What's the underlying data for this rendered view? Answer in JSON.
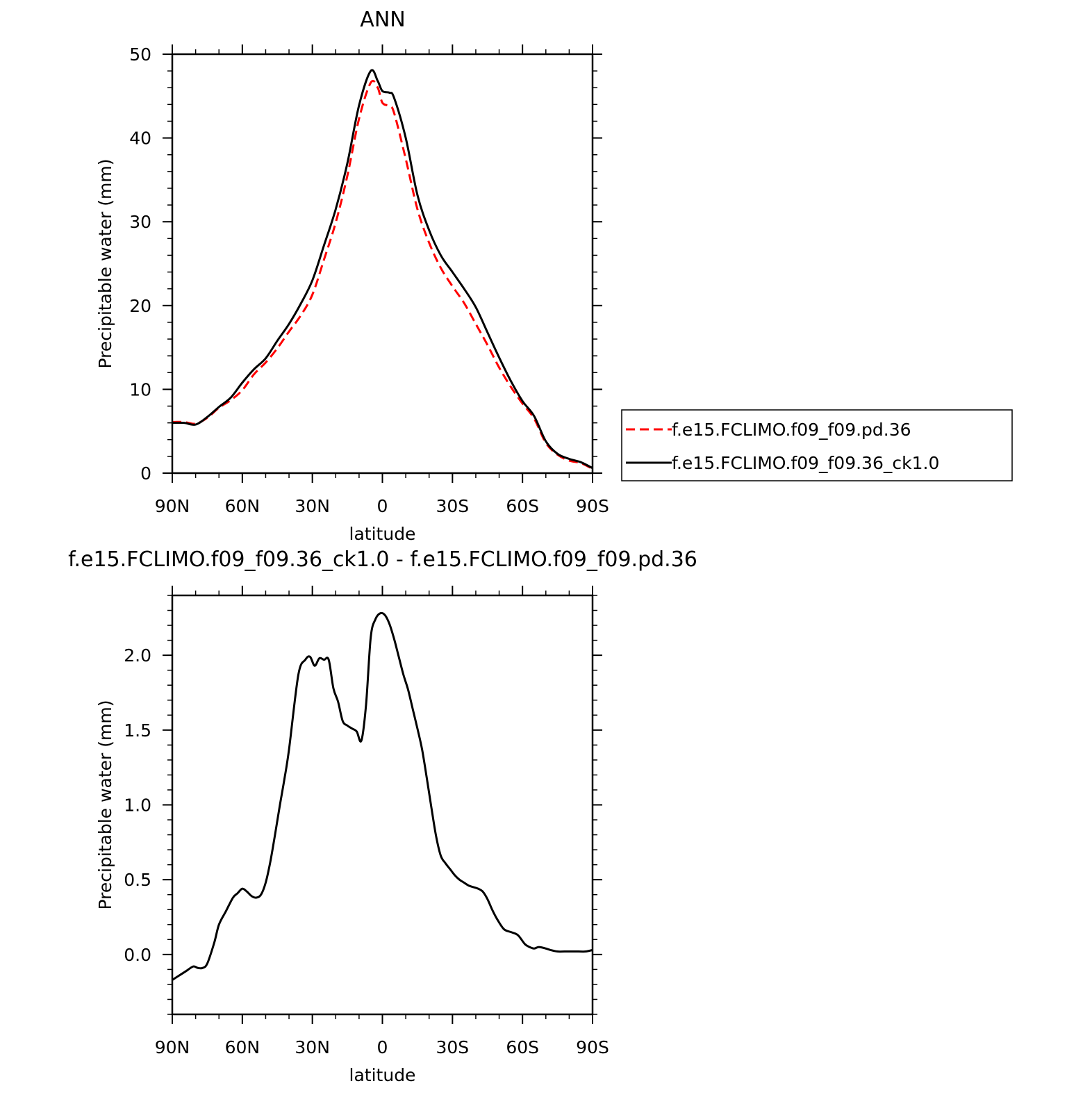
{
  "chart_data": [
    {
      "type": "line",
      "title": "ANN",
      "xlabel": "latitude",
      "ylabel": "Precipitable water (mm)",
      "xlim": [
        90,
        -90
      ],
      "ylim": [
        0,
        50
      ],
      "x_ticks": [
        90,
        60,
        30,
        0,
        -30,
        -60,
        -90
      ],
      "x_tick_labels": [
        "90N",
        "60N",
        "30N",
        "0",
        "30S",
        "60S",
        "90S"
      ],
      "y_ticks": [
        0,
        10,
        20,
        30,
        40,
        50
      ],
      "y_tick_labels": [
        "0",
        "10",
        "20",
        "30",
        "40",
        "50"
      ],
      "legend_position": "right",
      "series": [
        {
          "name": "f.e15.FCLIMO.f09_f09.pd.36",
          "color": "#ff0000",
          "style": "dashed",
          "x": [
            90,
            85,
            80,
            75,
            70,
            65,
            60,
            55,
            50,
            45,
            40,
            35,
            30,
            25,
            20,
            15,
            10,
            5,
            2,
            0,
            -3,
            -5,
            -10,
            -15,
            -20,
            -25,
            -30,
            -35,
            -40,
            -45,
            -50,
            -55,
            -60,
            -65,
            -70,
            -75,
            -80,
            -85,
            -90
          ],
          "y": [
            6.1,
            6.1,
            5.9,
            6.6,
            7.8,
            8.7,
            9.9,
            11.8,
            13.2,
            14.9,
            16.9,
            18.8,
            21.3,
            25.5,
            29.9,
            35.5,
            42.3,
            46.6,
            46.0,
            44.2,
            43.8,
            43.0,
            37.5,
            31.5,
            27.5,
            24.5,
            22.3,
            20.3,
            17.8,
            15.3,
            12.6,
            10.3,
            8.3,
            6.5,
            3.6,
            2.2,
            1.5,
            1.2,
            0.5
          ]
        },
        {
          "name": "f.e15.FCLIMO.f09_f09.36_ck1.0",
          "color": "#000000",
          "style": "solid",
          "x": [
            90,
            85,
            80,
            75,
            70,
            65,
            60,
            55,
            50,
            45,
            40,
            35,
            30,
            25,
            20,
            15,
            10,
            5,
            2,
            0,
            -3,
            -5,
            -10,
            -15,
            -20,
            -25,
            -30,
            -35,
            -40,
            -45,
            -50,
            -55,
            -60,
            -65,
            -70,
            -75,
            -80,
            -85,
            -90
          ],
          "y": [
            6.0,
            6.0,
            5.8,
            6.7,
            7.9,
            9.0,
            10.8,
            12.4,
            13.7,
            15.8,
            17.8,
            20.2,
            23.0,
            27.2,
            31.5,
            37.0,
            43.9,
            48.0,
            46.8,
            45.6,
            45.4,
            44.8,
            40.0,
            33.2,
            29.0,
            26.0,
            24.0,
            22.0,
            19.8,
            16.8,
            13.8,
            11.0,
            8.6,
            6.8,
            3.8,
            2.3,
            1.7,
            1.3,
            0.6
          ]
        }
      ]
    },
    {
      "type": "line",
      "title": "f.e15.FCLIMO.f09_f09.36_ck1.0 - f.e15.FCLIMO.f09_f09.pd.36",
      "xlabel": "latitude",
      "ylabel": "Precipitable water (mm)",
      "xlim": [
        90,
        -90
      ],
      "ylim": [
        -0.4,
        2.4
      ],
      "x_ticks": [
        90,
        60,
        30,
        0,
        -30,
        -60,
        -90
      ],
      "x_tick_labels": [
        "90N",
        "60N",
        "30N",
        "0",
        "30S",
        "60S",
        "90S"
      ],
      "y_ticks": [
        0.0,
        0.5,
        1.0,
        1.5,
        2.0
      ],
      "y_tick_labels": [
        "0.0",
        "0.5",
        "1.0",
        "1.5",
        "2.0"
      ],
      "series": [
        {
          "color": "#000000",
          "style": "solid",
          "x": [
            90,
            87,
            84,
            81,
            79,
            77,
            75,
            72,
            70,
            67,
            64,
            62,
            60,
            58,
            56,
            54,
            52,
            50,
            48,
            46,
            44,
            42,
            40,
            36,
            33,
            31,
            29,
            27,
            25,
            23,
            21,
            19,
            17,
            15,
            13,
            11,
            9,
            7,
            5,
            3,
            1,
            -1,
            -3,
            -5,
            -7,
            -9,
            -11,
            -13,
            -15,
            -17,
            -19,
            -21,
            -23,
            -25,
            -27,
            -29,
            -31,
            -33,
            -35,
            -37,
            -39,
            -41,
            -43,
            -45,
            -47,
            -49,
            -52,
            -55,
            -58,
            -61,
            -63,
            -65,
            -67,
            -70,
            -72,
            -75,
            -78,
            -81,
            -84,
            -87,
            -90
          ],
          "y": [
            -0.17,
            -0.14,
            -0.11,
            -0.08,
            -0.09,
            -0.09,
            -0.06,
            0.08,
            0.2,
            0.29,
            0.38,
            0.41,
            0.44,
            0.42,
            0.39,
            0.38,
            0.4,
            0.48,
            0.62,
            0.8,
            0.99,
            1.17,
            1.37,
            1.87,
            1.97,
            1.99,
            1.93,
            1.98,
            1.97,
            1.97,
            1.78,
            1.69,
            1.56,
            1.53,
            1.51,
            1.49,
            1.43,
            1.67,
            2.12,
            2.24,
            2.28,
            2.27,
            2.21,
            2.11,
            1.99,
            1.87,
            1.77,
            1.64,
            1.51,
            1.37,
            1.18,
            0.98,
            0.79,
            0.66,
            0.61,
            0.57,
            0.53,
            0.5,
            0.48,
            0.46,
            0.45,
            0.44,
            0.42,
            0.37,
            0.3,
            0.24,
            0.17,
            0.15,
            0.13,
            0.07,
            0.05,
            0.04,
            0.05,
            0.04,
            0.03,
            0.02,
            0.02,
            0.02,
            0.02,
            0.02,
            0.03
          ]
        }
      ]
    }
  ]
}
